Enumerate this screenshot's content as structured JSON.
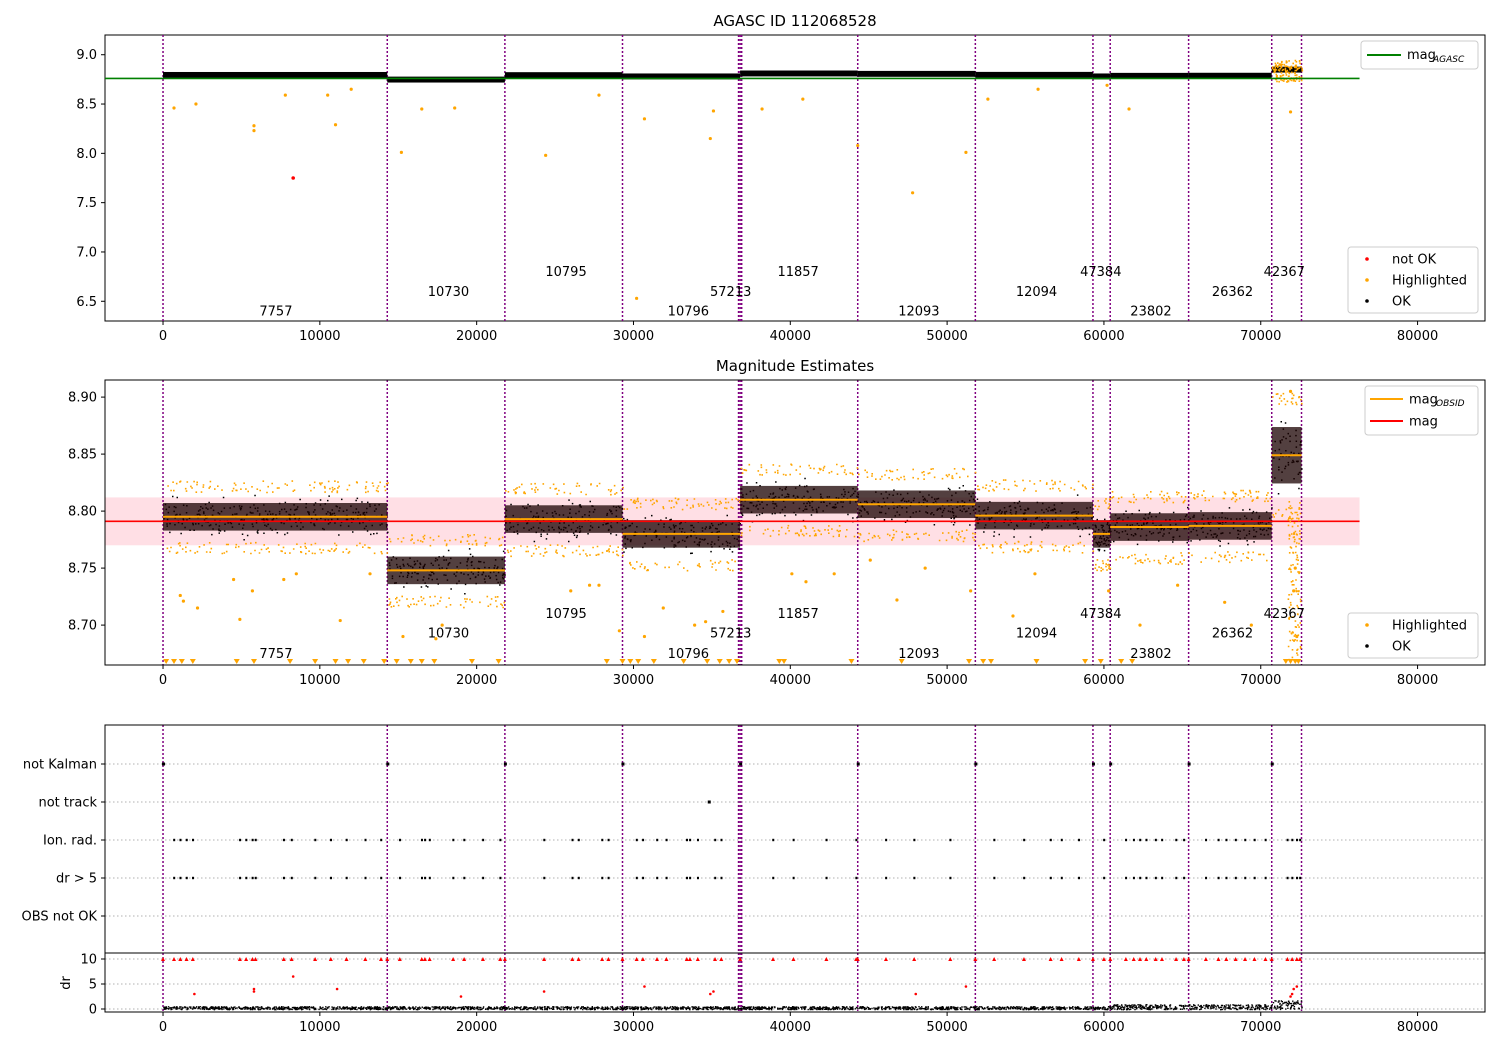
{
  "chart_data": [
    {
      "type": "scatter",
      "title": "AGASC ID 112068528",
      "xlim": [
        -3700,
        84300
      ],
      "ylim": [
        6.3,
        9.2
      ],
      "x_ticks": [
        0,
        10000,
        20000,
        30000,
        40000,
        50000,
        60000,
        70000,
        80000
      ],
      "y_ticks": [
        6.5,
        7.0,
        7.5,
        8.0,
        8.5,
        9.0
      ],
      "y_tick_labels": [
        "6.5",
        "7.0",
        "7.5",
        "8.0",
        "8.5",
        "9.0"
      ],
      "legend_top": {
        "placement": "top-right",
        "entries": [
          {
            "label": "mag",
            "sub": "AGASC",
            "color": "#008000"
          }
        ]
      },
      "legend_bottom": {
        "placement": "bottom-right",
        "entries": [
          {
            "label": "not OK",
            "color": "#ff0000"
          },
          {
            "label": "Highlighted",
            "color": "#ffa500"
          },
          {
            "label": "OK",
            "color": "#000000"
          }
        ]
      },
      "agasc_mag": 8.76,
      "mag_range_x": [
        -3700,
        76300
      ],
      "obsid_labels": [
        {
          "text": "7757",
          "x": 7200,
          "y": 6.4
        },
        {
          "text": "10730",
          "x": 18200,
          "y": 6.6
        },
        {
          "text": "10795",
          "x": 25700,
          "y": 6.8
        },
        {
          "text": "10796",
          "x": 33500,
          "y": 6.4
        },
        {
          "text": "57213",
          "x": 36200,
          "y": 6.6
        },
        {
          "text": "11857",
          "x": 40500,
          "y": 6.8
        },
        {
          "text": "12093",
          "x": 48200,
          "y": 6.4
        },
        {
          "text": "12094",
          "x": 55700,
          "y": 6.6
        },
        {
          "text": "47384",
          "x": 59800,
          "y": 6.8
        },
        {
          "text": "23802",
          "x": 63000,
          "y": 6.4
        },
        {
          "text": "26362",
          "x": 68200,
          "y": 6.6
        },
        {
          "text": "42367",
          "x": 71500,
          "y": 6.8
        }
      ],
      "not_ok_points": [
        {
          "x": 8300,
          "y": 7.75
        }
      ],
      "highlighted_points": [
        {
          "x": 700,
          "y": 8.46
        },
        {
          "x": 2100,
          "y": 8.5
        },
        {
          "x": 5800,
          "y": 8.28
        },
        {
          "x": 5800,
          "y": 8.23
        },
        {
          "x": 7800,
          "y": 8.59
        },
        {
          "x": 10500,
          "y": 8.59
        },
        {
          "x": 11000,
          "y": 8.29
        },
        {
          "x": 12000,
          "y": 8.65
        },
        {
          "x": 15200,
          "y": 8.01
        },
        {
          "x": 16500,
          "y": 8.45
        },
        {
          "x": 18600,
          "y": 8.46
        },
        {
          "x": 24400,
          "y": 7.98
        },
        {
          "x": 27800,
          "y": 8.59
        },
        {
          "x": 30200,
          "y": 6.53
        },
        {
          "x": 30700,
          "y": 8.35
        },
        {
          "x": 34900,
          "y": 8.15
        },
        {
          "x": 35100,
          "y": 8.43
        },
        {
          "x": 38200,
          "y": 8.45
        },
        {
          "x": 40800,
          "y": 8.55
        },
        {
          "x": 44300,
          "y": 8.08
        },
        {
          "x": 47800,
          "y": 7.6
        },
        {
          "x": 51200,
          "y": 8.01
        },
        {
          "x": 52600,
          "y": 8.55
        },
        {
          "x": 55800,
          "y": 8.65
        },
        {
          "x": 60200,
          "y": 8.69
        },
        {
          "x": 61600,
          "y": 8.45
        },
        {
          "x": 71900,
          "y": 8.42
        }
      ],
      "segments": [
        {
          "x0": 0,
          "x1": 14300,
          "mag": 8.795
        },
        {
          "x0": 14300,
          "x1": 21800,
          "mag": 8.748
        },
        {
          "x0": 21800,
          "x1": 29300,
          "mag": 8.793
        },
        {
          "x0": 29300,
          "x1": 36800,
          "mag": 8.78
        },
        {
          "x0": 36800,
          "x1": 44300,
          "mag": 8.81
        },
        {
          "x0": 44300,
          "x1": 51800,
          "mag": 8.806
        },
        {
          "x0": 51800,
          "x1": 59300,
          "mag": 8.796
        },
        {
          "x0": 59300,
          "x1": 60400,
          "mag": 8.78
        },
        {
          "x0": 60400,
          "x1": 65400,
          "mag": 8.786
        },
        {
          "x0": 65400,
          "x1": 70700,
          "mag": 8.787
        },
        {
          "x0": 70700,
          "x1": 72600,
          "mag": 8.849
        }
      ]
    },
    {
      "type": "scatter",
      "title": "Magnitude Estimates",
      "xlim": [
        -3700,
        84300
      ],
      "ylim": [
        8.665,
        8.915
      ],
      "x_ticks": [
        0,
        10000,
        20000,
        30000,
        40000,
        50000,
        60000,
        70000,
        80000
      ],
      "y_ticks": [
        8.7,
        8.75,
        8.8,
        8.85,
        8.9
      ],
      "y_tick_labels": [
        "8.70",
        "8.75",
        "8.80",
        "8.85",
        "8.90"
      ],
      "legend_top": {
        "placement": "top-right",
        "entries": [
          {
            "label": "mag",
            "sub": "OBSID",
            "color": "#ffa500"
          },
          {
            "label": "mag",
            "color": "#ff0000"
          }
        ]
      },
      "legend_bottom": {
        "placement": "bottom-right",
        "entries": [
          {
            "label": "Highlighted",
            "color": "#ffa500"
          },
          {
            "label": "OK",
            "color": "#000000"
          }
        ]
      },
      "mag": 8.791,
      "mag_err": 0.021,
      "mag_range_x": [
        -3700,
        76300
      ],
      "obsid_labels": [
        {
          "text": "7757",
          "x": 7200,
          "y": 8.675
        },
        {
          "text": "10730",
          "x": 18200,
          "y": 8.693
        },
        {
          "text": "10795",
          "x": 25700,
          "y": 8.71
        },
        {
          "text": "10796",
          "x": 33500,
          "y": 8.675
        },
        {
          "text": "57213",
          "x": 36200,
          "y": 8.693
        },
        {
          "text": "11857",
          "x": 40500,
          "y": 8.71
        },
        {
          "text": "12093",
          "x": 48200,
          "y": 8.675
        },
        {
          "text": "12094",
          "x": 55700,
          "y": 8.693
        },
        {
          "text": "47384",
          "x": 59800,
          "y": 8.71
        },
        {
          "text": "23802",
          "x": 63000,
          "y": 8.675
        },
        {
          "text": "26362",
          "x": 68200,
          "y": 8.693
        },
        {
          "text": "42367",
          "x": 71500,
          "y": 8.71
        }
      ],
      "highlighted_points": [
        {
          "x": 1100,
          "y": 8.726
        },
        {
          "x": 1300,
          "y": 8.721
        },
        {
          "x": 2200,
          "y": 8.715
        },
        {
          "x": 4500,
          "y": 8.74
        },
        {
          "x": 4900,
          "y": 8.705
        },
        {
          "x": 5700,
          "y": 8.73
        },
        {
          "x": 7700,
          "y": 8.74
        },
        {
          "x": 8500,
          "y": 8.745
        },
        {
          "x": 11300,
          "y": 8.704
        },
        {
          "x": 13200,
          "y": 8.745
        },
        {
          "x": 15300,
          "y": 8.69
        },
        {
          "x": 17400,
          "y": 8.688
        },
        {
          "x": 17800,
          "y": 8.7
        },
        {
          "x": 26000,
          "y": 8.73
        },
        {
          "x": 27200,
          "y": 8.735
        },
        {
          "x": 27800,
          "y": 8.735
        },
        {
          "x": 29100,
          "y": 8.695
        },
        {
          "x": 30700,
          "y": 8.69
        },
        {
          "x": 31900,
          "y": 8.715
        },
        {
          "x": 33900,
          "y": 8.7
        },
        {
          "x": 34600,
          "y": 8.703
        },
        {
          "x": 35700,
          "y": 8.712
        },
        {
          "x": 40100,
          "y": 8.745
        },
        {
          "x": 41000,
          "y": 8.738
        },
        {
          "x": 42800,
          "y": 8.745
        },
        {
          "x": 45100,
          "y": 8.757
        },
        {
          "x": 46800,
          "y": 8.722
        },
        {
          "x": 48600,
          "y": 8.75
        },
        {
          "x": 51500,
          "y": 8.73
        },
        {
          "x": 54200,
          "y": 8.708
        },
        {
          "x": 55600,
          "y": 8.745
        },
        {
          "x": 60300,
          "y": 8.73
        },
        {
          "x": 62300,
          "y": 8.7
        },
        {
          "x": 64700,
          "y": 8.735
        },
        {
          "x": 67700,
          "y": 8.72
        },
        {
          "x": 69400,
          "y": 8.7
        },
        {
          "x": 71900,
          "y": 8.905
        },
        {
          "x": 72100,
          "y": 8.73
        },
        {
          "x": 72300,
          "y": 8.69
        },
        {
          "x": 72200,
          "y": 8.75
        }
      ],
      "below_range_x": [
        200,
        700,
        1200,
        1900,
        4700,
        5800,
        8100,
        9700,
        11000,
        11800,
        12800,
        14100,
        14900,
        15800,
        16500,
        17300,
        19700,
        21400,
        28300,
        29300,
        29800,
        30300,
        31300,
        33200,
        34700,
        35500,
        36100,
        36600,
        39300,
        39600,
        43900,
        47100,
        51400,
        52300,
        52800,
        55700,
        58800,
        59800,
        61100,
        61800,
        71600,
        71900,
        72200,
        72400
      ]
    },
    {
      "type": "scatter",
      "xlim": [
        -3700,
        84300
      ],
      "x_ticks": [
        0,
        10000,
        20000,
        30000,
        40000,
        50000,
        60000,
        70000,
        80000
      ],
      "flag_labels": [
        "not Kalman",
        "not track",
        "Ion. rad.",
        "dr > 5",
        "OBS not OK"
      ],
      "not_kalman_x": [
        0,
        14300,
        21800,
        29300,
        36800,
        44300,
        51800,
        59300,
        60400,
        65400,
        70700
      ],
      "not_track_x": [
        34800
      ],
      "ion_rad_x": [
        700,
        1100,
        1500,
        1900,
        4900,
        5300,
        5700,
        5900,
        7700,
        8200,
        9700,
        10700,
        11700,
        12900,
        13900,
        15100,
        16500,
        16700,
        17000,
        18500,
        19200,
        20400,
        21500,
        24300,
        26100,
        26500,
        28000,
        28400,
        30200,
        30600,
        31500,
        32100,
        33400,
        33600,
        34100,
        35200,
        35600,
        38900,
        40200,
        42300,
        44200,
        46100,
        47900,
        50200,
        53000,
        54900,
        56600,
        57300,
        58400,
        60000,
        61400,
        61900,
        62300,
        62700,
        63300,
        63700,
        64600,
        65100,
        66500,
        67300,
        67800,
        68400,
        69000,
        69600,
        70300,
        71700,
        72000,
        72300,
        72500
      ],
      "dr_ylabel": "dr",
      "dr_ylim": [
        -0.6,
        11.2
      ],
      "dr_y_ticks": [
        0,
        5,
        10
      ],
      "dr_y_tick_labels": [
        "0",
        "5",
        "10"
      ],
      "dr_scatter_points": [
        {
          "x": 2000,
          "y": 3.0
        },
        {
          "x": 5800,
          "y": 4.0
        },
        {
          "x": 5800,
          "y": 3.5
        },
        {
          "x": 8300,
          "y": 6.5
        },
        {
          "x": 11100,
          "y": 4.0
        },
        {
          "x": 24300,
          "y": 3.5
        },
        {
          "x": 30700,
          "y": 4.5
        },
        {
          "x": 34900,
          "y": 3.0
        },
        {
          "x": 35100,
          "y": 3.5
        },
        {
          "x": 51200,
          "y": 4.5
        },
        {
          "x": 72000,
          "y": 3.0
        },
        {
          "x": 72100,
          "y": 4.0
        },
        {
          "x": 72300,
          "y": 4.5
        },
        {
          "x": 71900,
          "y": 2.5
        },
        {
          "x": 19000,
          "y": 2.5
        },
        {
          "x": 48000,
          "y": 3.0
        }
      ]
    }
  ]
}
